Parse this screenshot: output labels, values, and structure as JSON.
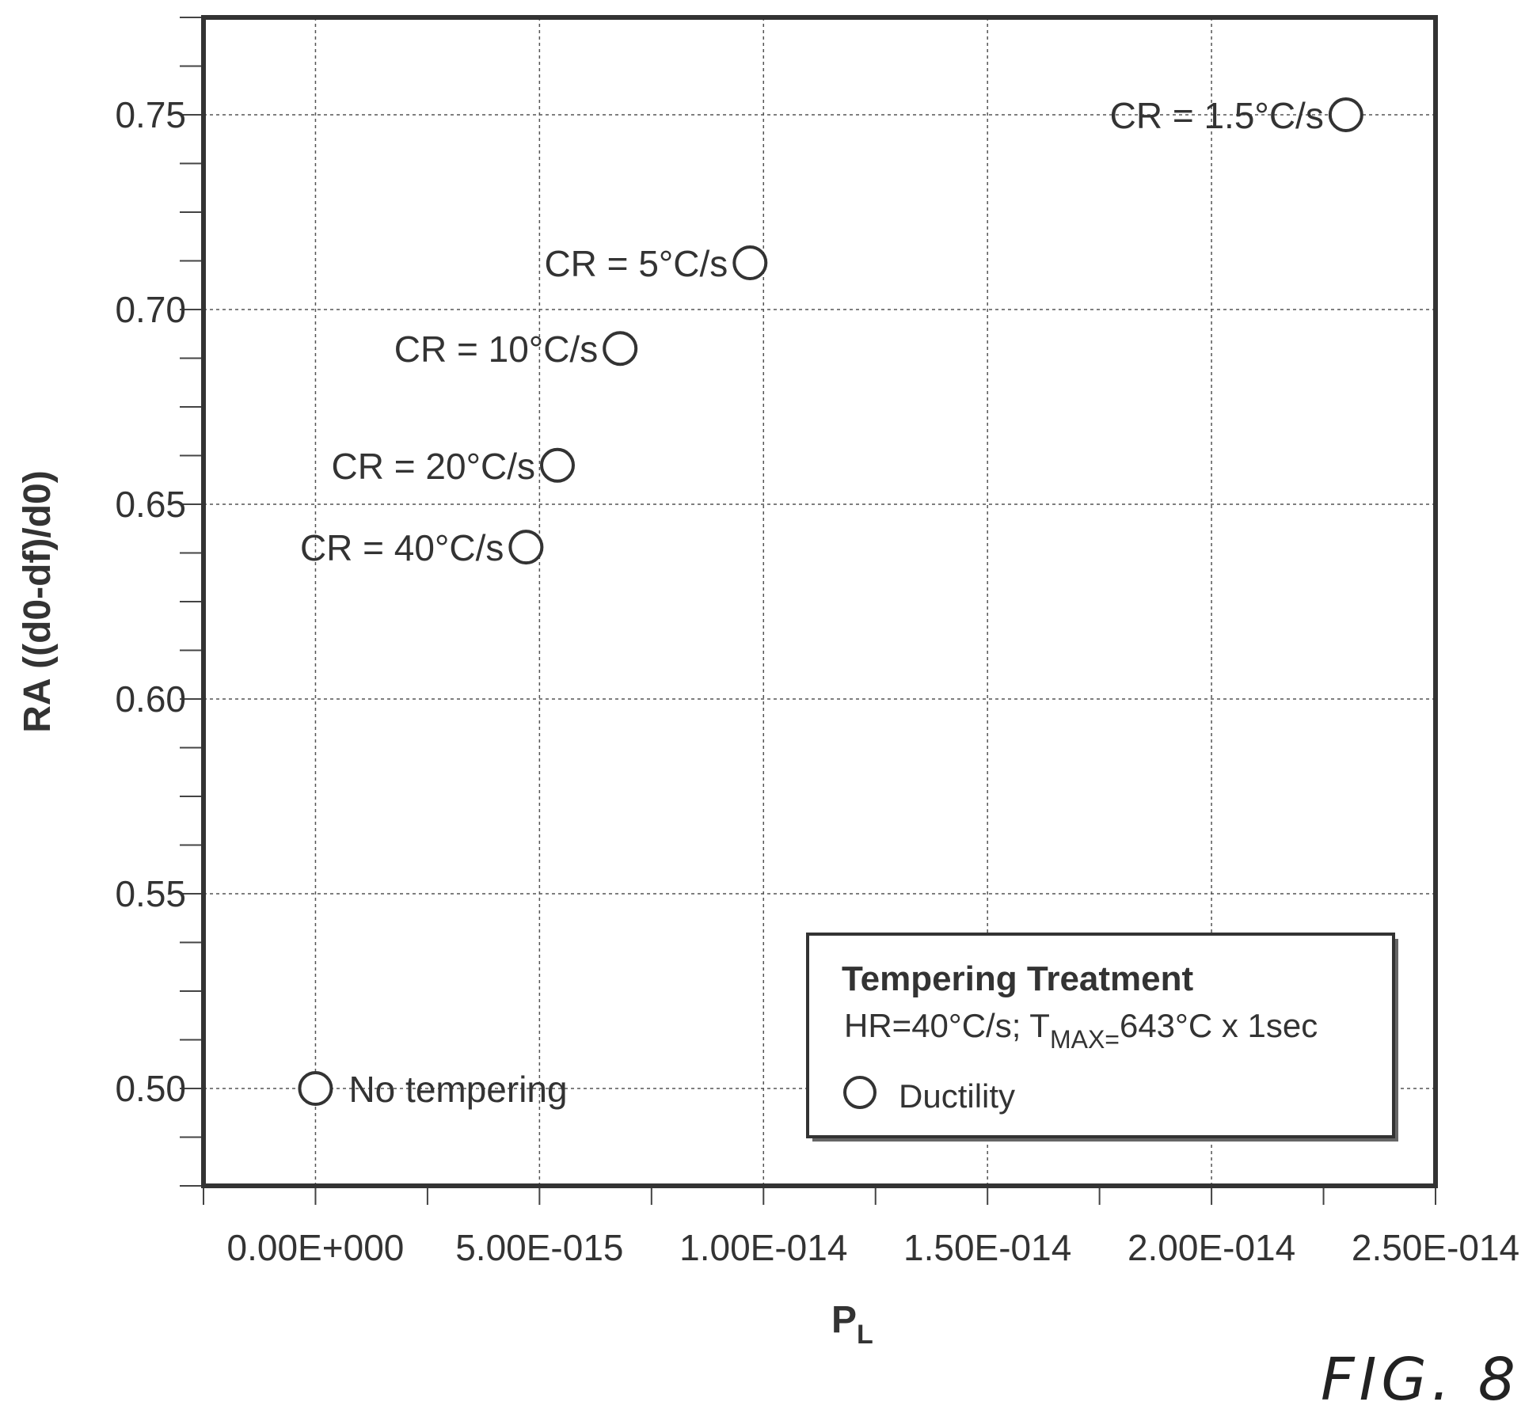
{
  "chart_data": {
    "type": "scatter",
    "xlabel": "P",
    "xlabel_sub": "L",
    "ylabel": "RA ((d0-df)/d0)",
    "xlim": [
      -2.5e-15,
      2.5e-14
    ],
    "ylim": [
      0.475,
      0.775
    ],
    "grid": true,
    "x_ticks": [
      {
        "value": 0,
        "label": "0.00E+000"
      },
      {
        "value": 5e-15,
        "label": "5.00E-015"
      },
      {
        "value": 1e-14,
        "label": "1.00E-014"
      },
      {
        "value": 1.5e-14,
        "label": "1.50E-014"
      },
      {
        "value": 2e-14,
        "label": "2.00E-014"
      },
      {
        "value": 2.5e-14,
        "label": "2.50E-014"
      }
    ],
    "y_ticks": [
      {
        "value": 0.5,
        "label": "0.50"
      },
      {
        "value": 0.55,
        "label": "0.55"
      },
      {
        "value": 0.6,
        "label": "0.60"
      },
      {
        "value": 0.65,
        "label": "0.65"
      },
      {
        "value": 0.7,
        "label": "0.70"
      },
      {
        "value": 0.75,
        "label": "0.75"
      }
    ],
    "series": [
      {
        "name": "Ductility",
        "points": [
          {
            "x": 0,
            "y": 0.5,
            "label": "No tempering",
            "label_side": "right"
          },
          {
            "x": 4.7e-15,
            "y": 0.639,
            "label": "CR = 40°C/s",
            "label_side": "left"
          },
          {
            "x": 5.4e-15,
            "y": 0.66,
            "label": "CR = 20°C/s",
            "label_side": "left"
          },
          {
            "x": 6.8e-15,
            "y": 0.69,
            "label": "CR = 10°C/s",
            "label_side": "left"
          },
          {
            "x": 9.7e-15,
            "y": 0.712,
            "label": "CR = 5°C/s",
            "label_side": "left"
          },
          {
            "x": 2.3e-14,
            "y": 0.75,
            "label": "CR = 1.5°C/s",
            "label_side": "left"
          }
        ]
      }
    ],
    "legend": {
      "placement": "bottom-right",
      "title": "Tempering Treatment",
      "line_part1": "HR=40°C/s; T",
      "line_sub": "MAX=",
      "line_part2": "643°C x 1sec",
      "entry": "Ductility"
    },
    "figure_label": "FIG. 8"
  }
}
